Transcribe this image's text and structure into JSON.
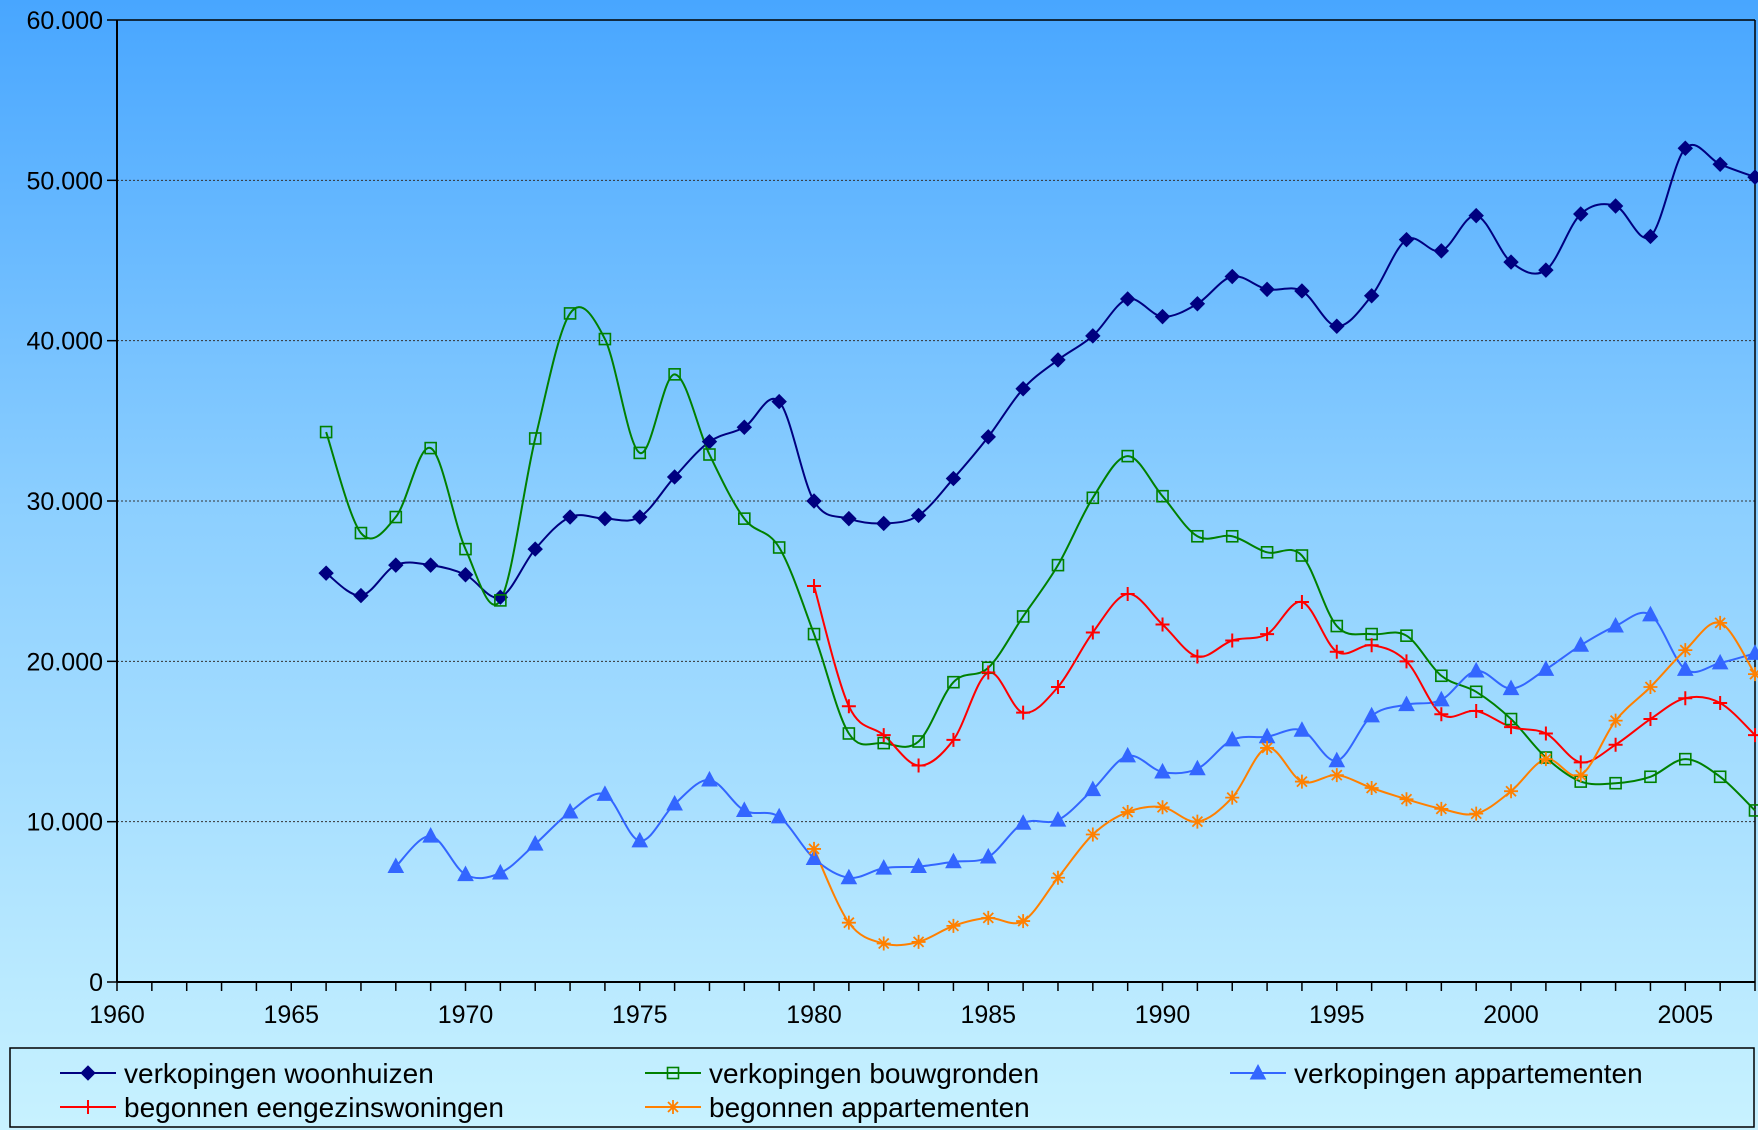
{
  "chart_data": {
    "type": "line",
    "title": "",
    "xlabel": "",
    "ylabel": "",
    "xlim": [
      1960,
      2007
    ],
    "ylim": [
      0,
      60000
    ],
    "x_ticks": [
      1960,
      1965,
      1970,
      1975,
      1980,
      1985,
      1990,
      1995,
      2000,
      2005
    ],
    "x_tick_labels": [
      "1960",
      "1965",
      "1970",
      "1975",
      "1980",
      "1985",
      "1990",
      "1995",
      "2000",
      "2005"
    ],
    "y_ticks": [
      0,
      10000,
      20000,
      30000,
      40000,
      50000,
      60000
    ],
    "y_tick_labels": [
      "0",
      "10.000",
      "20.000",
      "30.000",
      "40.000",
      "50.000",
      "60.000"
    ],
    "grid": "horizontal dotted",
    "legend_position": "bottom",
    "series": [
      {
        "name": "verkopingen woonhuizen",
        "color": "#000080",
        "marker": "diamond",
        "x": [
          1966,
          1967,
          1968,
          1969,
          1970,
          1971,
          1972,
          1973,
          1974,
          1975,
          1976,
          1977,
          1978,
          1979,
          1980,
          1981,
          1982,
          1983,
          1984,
          1985,
          1986,
          1987,
          1988,
          1989,
          1990,
          1991,
          1992,
          1993,
          1994,
          1995,
          1996,
          1997,
          1998,
          1999,
          2000,
          2001,
          2002,
          2003,
          2004,
          2005,
          2006,
          2007
        ],
        "values": [
          25500,
          24100,
          26000,
          26000,
          25400,
          24000,
          27000,
          29000,
          28900,
          29000,
          31500,
          33700,
          34600,
          36200,
          30000,
          28900,
          28600,
          29100,
          31400,
          34000,
          37000,
          38800,
          40300,
          42600,
          41500,
          42300,
          44000,
          43200,
          43100,
          40900,
          42800,
          46300,
          45600,
          47800,
          44900,
          44400,
          47900,
          48400,
          46500,
          52000,
          51000,
          50200
        ]
      },
      {
        "name": "verkopingen bouwgronden",
        "color": "#008000",
        "marker": "square-open",
        "x": [
          1966,
          1967,
          1968,
          1969,
          1970,
          1971,
          1972,
          1973,
          1974,
          1975,
          1976,
          1977,
          1978,
          1979,
          1980,
          1981,
          1982,
          1983,
          1984,
          1985,
          1986,
          1987,
          1988,
          1989,
          1990,
          1991,
          1992,
          1993,
          1994,
          1995,
          1996,
          1997,
          1998,
          1999,
          2000,
          2001,
          2002,
          2003,
          2004,
          2005,
          2006,
          2007
        ],
        "values": [
          34300,
          28000,
          29000,
          33300,
          27000,
          23800,
          33900,
          41700,
          40100,
          33000,
          37900,
          32900,
          28900,
          27100,
          21700,
          15500,
          14900,
          15000,
          18700,
          19600,
          22800,
          26000,
          30200,
          32800,
          30300,
          27800,
          27800,
          26800,
          26600,
          22200,
          21700,
          21600,
          19100,
          18100,
          16400,
          14000,
          12500,
          12400,
          12800,
          13900,
          12800,
          10700
        ]
      },
      {
        "name": "verkopingen appartementen",
        "color": "#3366ff",
        "marker": "triangle",
        "x": [
          1968,
          1969,
          1970,
          1971,
          1972,
          1973,
          1974,
          1975,
          1976,
          1977,
          1978,
          1979,
          1980,
          1981,
          1982,
          1983,
          1984,
          1985,
          1986,
          1987,
          1988,
          1989,
          1990,
          1991,
          1992,
          1993,
          1994,
          1995,
          1996,
          1997,
          1998,
          1999,
          2000,
          2001,
          2002,
          2003,
          2004,
          2005,
          2006,
          2007
        ],
        "values": [
          7200,
          9100,
          6700,
          6800,
          8600,
          10600,
          11700,
          8800,
          11100,
          12600,
          10700,
          10300,
          7700,
          6500,
          7100,
          7200,
          7500,
          7800,
          9900,
          10100,
          12000,
          14100,
          13100,
          13300,
          15100,
          15300,
          15700,
          13800,
          16600,
          17300,
          17600,
          19400,
          18300,
          19500,
          21000,
          22200,
          22900,
          19500,
          19900,
          20500
        ]
      },
      {
        "name": "begonnen eengezinswoningen",
        "color": "#ff0000",
        "marker": "plus",
        "x": [
          1980,
          1981,
          1982,
          1983,
          1984,
          1985,
          1986,
          1987,
          1988,
          1989,
          1990,
          1991,
          1992,
          1993,
          1994,
          1995,
          1996,
          1997,
          1998,
          1999,
          2000,
          2001,
          2002,
          2003,
          2004,
          2005,
          2006,
          2007
        ],
        "values": [
          24700,
          17200,
          15400,
          13500,
          15100,
          19300,
          16800,
          18400,
          21800,
          24200,
          22300,
          20300,
          21300,
          21700,
          23700,
          20600,
          21000,
          20000,
          16700,
          16900,
          15900,
          15500,
          13700,
          14800,
          16400,
          17700,
          17400,
          15400
        ]
      },
      {
        "name": "begonnen appartementen",
        "color": "#ff8000",
        "marker": "star",
        "x": [
          1980,
          1981,
          1982,
          1983,
          1984,
          1985,
          1986,
          1987,
          1988,
          1989,
          1990,
          1991,
          1992,
          1993,
          1994,
          1995,
          1996,
          1997,
          1998,
          1999,
          2000,
          2001,
          2002,
          2003,
          2004,
          2005,
          2006,
          2007
        ],
        "values": [
          8300,
          3700,
          2400,
          2500,
          3500,
          4000,
          3800,
          6500,
          9200,
          10600,
          10900,
          10000,
          11500,
          14600,
          12500,
          12900,
          12100,
          11400,
          10800,
          10500,
          11900,
          13900,
          12900,
          16300,
          18400,
          20700,
          22400,
          19200
        ]
      }
    ]
  }
}
